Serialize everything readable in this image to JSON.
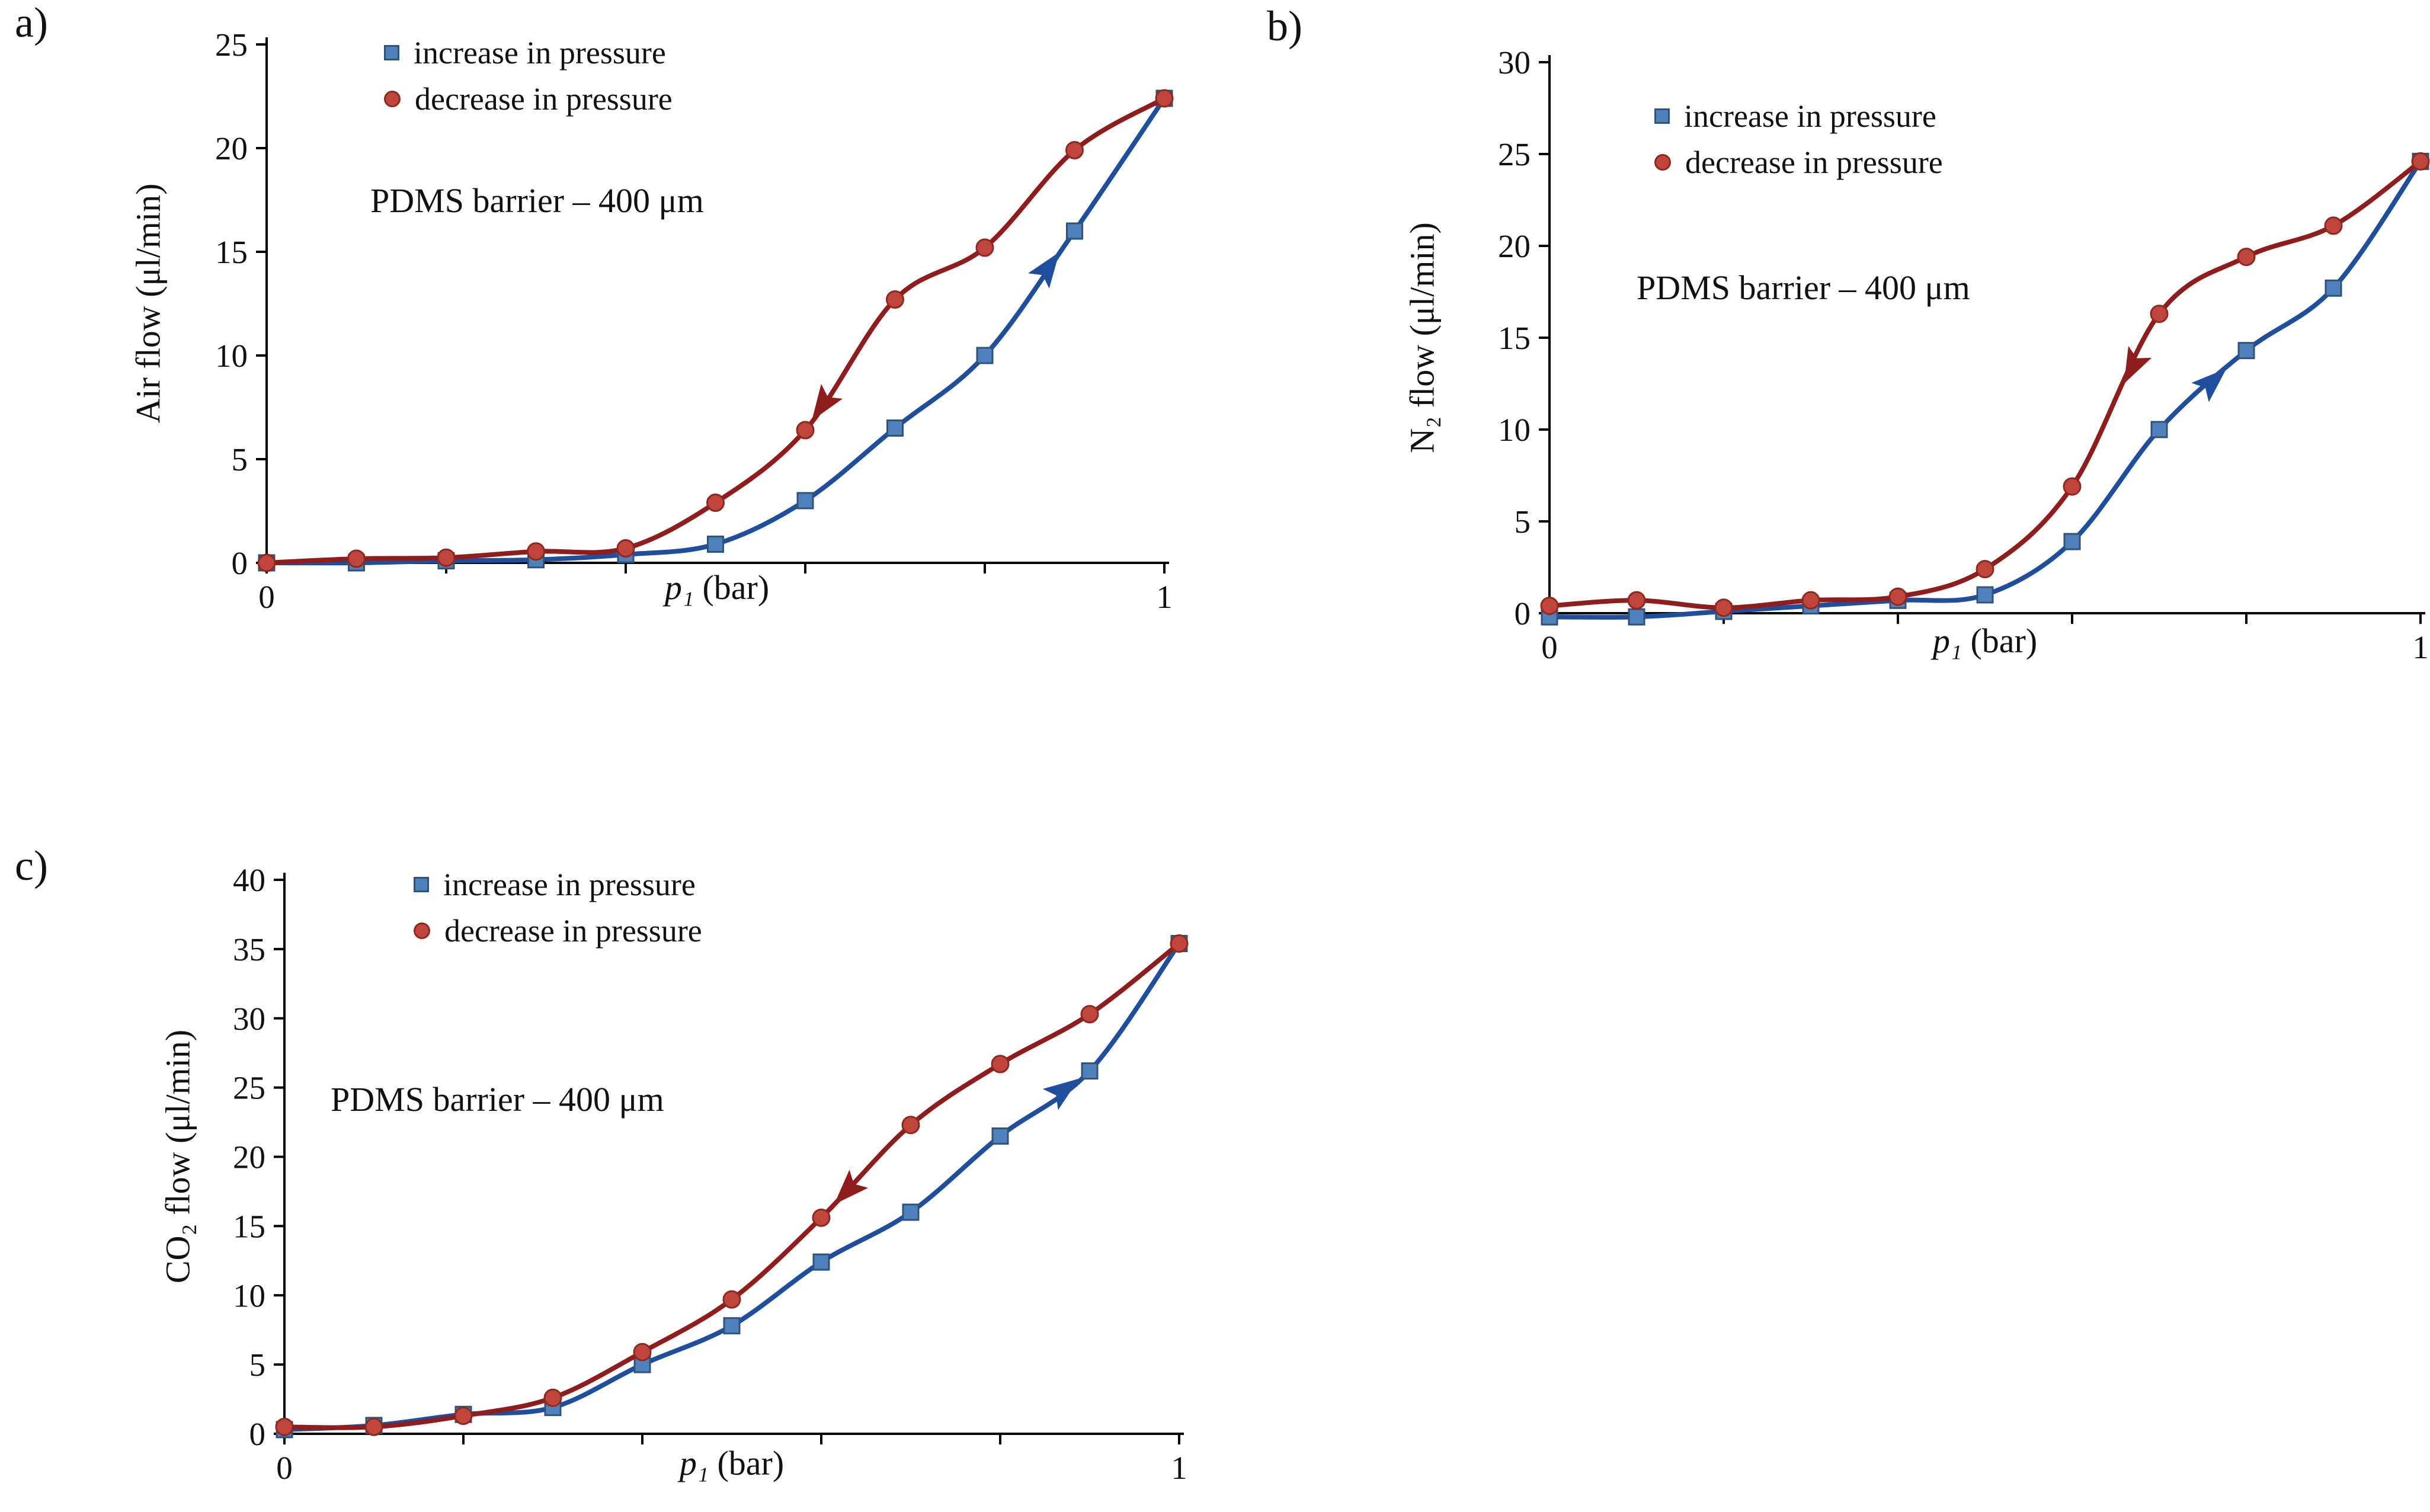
{
  "figure": {
    "background": "#ffffff",
    "text_color": "#111111",
    "axis_color": "#000000"
  },
  "chart_data": [
    {
      "id": "a",
      "type": "line",
      "panel_label": "a)",
      "ylabel": "Air flow (μl/min)",
      "xlabel_var": "p₁",
      "xlabel_rest": " (bar)",
      "annotation": "PDMS barrier – 400 μm",
      "xlim": [
        0,
        1
      ],
      "ylim": [
        0,
        25
      ],
      "yticks": [
        0,
        5,
        10,
        15,
        20,
        25
      ],
      "xticks": [
        0,
        0.2,
        0.4,
        0.6,
        0.8,
        1
      ],
      "xtick_labels": [
        "0",
        "",
        "",
        "",
        "",
        "1"
      ],
      "grid": false,
      "legend_position": "top-left",
      "series": [
        {
          "name": "increase in pressure",
          "marker": "square",
          "marker_color": "#4f81bd",
          "marker_edge": "#31537a",
          "line_color": "#1f4e9c",
          "x": [
            0,
            0.1,
            0.2,
            0.3,
            0.4,
            0.5,
            0.6,
            0.7,
            0.8,
            0.9,
            1
          ],
          "y": [
            0,
            0,
            0.1,
            0.15,
            0.4,
            0.9,
            3.0,
            6.5,
            10.0,
            16.0,
            22.4
          ],
          "arrow": {
            "x": 0.87,
            "direction": "increasing"
          }
        },
        {
          "name": "decrease in pressure",
          "marker": "circle",
          "marker_color": "#c0453c",
          "marker_edge": "#8c2a22",
          "line_color": "#8f1d1d",
          "x": [
            0,
            0.1,
            0.2,
            0.3,
            0.4,
            0.5,
            0.6,
            0.7,
            0.8,
            0.9,
            1
          ],
          "y": [
            0,
            0.2,
            0.25,
            0.55,
            0.7,
            2.9,
            6.4,
            12.7,
            15.2,
            19.9,
            22.4
          ],
          "arrow": {
            "x": 0.62,
            "direction": "decreasing"
          }
        }
      ]
    },
    {
      "id": "b",
      "type": "line",
      "panel_label": "b)",
      "ylabel": "N₂ flow (μl/min)",
      "xlabel_var": "p₁",
      "xlabel_rest": " (bar)",
      "annotation": "PDMS barrier – 400 μm",
      "xlim": [
        0,
        1
      ],
      "ylim": [
        0,
        30
      ],
      "yticks": [
        0,
        5,
        10,
        15,
        20,
        25,
        30
      ],
      "xticks": [
        0,
        0.2,
        0.4,
        0.6,
        0.8,
        1
      ],
      "xtick_labels": [
        "0",
        "",
        "",
        "",
        "",
        "1"
      ],
      "grid": false,
      "legend_position": "top-left",
      "series": [
        {
          "name": "increase in pressure",
          "marker": "square",
          "marker_color": "#4f81bd",
          "marker_edge": "#31537a",
          "line_color": "#1f4e9c",
          "x": [
            0,
            0.1,
            0.2,
            0.3,
            0.4,
            0.5,
            0.6,
            0.7,
            0.8,
            0.9,
            1
          ],
          "y": [
            -0.2,
            -0.2,
            0.1,
            0.4,
            0.7,
            1.0,
            3.9,
            10.0,
            14.3,
            17.7,
            24.6
          ],
          "arrow": {
            "x": 0.76,
            "direction": "increasing"
          }
        },
        {
          "name": "decrease in pressure",
          "marker": "circle",
          "marker_color": "#c0453c",
          "marker_edge": "#8c2a22",
          "line_color": "#8f1d1d",
          "x": [
            0,
            0.1,
            0.2,
            0.3,
            0.4,
            0.5,
            0.6,
            0.7,
            0.8,
            0.9,
            1
          ],
          "y": [
            0.4,
            0.7,
            0.3,
            0.7,
            0.9,
            2.4,
            6.9,
            16.3,
            19.4,
            21.1,
            24.6
          ],
          "arrow": {
            "x": 0.67,
            "direction": "decreasing"
          }
        }
      ]
    },
    {
      "id": "c",
      "type": "line",
      "panel_label": "c)",
      "ylabel": "CO₂ flow (μl/min)",
      "xlabel_var": "p₁",
      "xlabel_rest": " (bar)",
      "annotation": "PDMS barrier – 400 μm",
      "xlim": [
        0,
        1
      ],
      "ylim": [
        0,
        40
      ],
      "yticks": [
        0,
        5,
        10,
        15,
        20,
        25,
        30,
        35,
        40
      ],
      "xticks": [
        0,
        0.2,
        0.4,
        0.6,
        0.8,
        1
      ],
      "xtick_labels": [
        "0",
        "",
        "",
        "",
        "",
        "1"
      ],
      "grid": false,
      "legend_position": "top-left",
      "series": [
        {
          "name": "increase in pressure",
          "marker": "square",
          "marker_color": "#4f81bd",
          "marker_edge": "#31537a",
          "line_color": "#1f4e9c",
          "x": [
            0,
            0.1,
            0.2,
            0.3,
            0.4,
            0.5,
            0.6,
            0.7,
            0.8,
            0.9,
            1
          ],
          "y": [
            0.3,
            0.6,
            1.4,
            1.9,
            5.0,
            7.8,
            12.4,
            16.0,
            21.5,
            26.2,
            35.4
          ],
          "arrow": {
            "x": 0.87,
            "direction": "increasing"
          }
        },
        {
          "name": "decrease in pressure",
          "marker": "circle",
          "marker_color": "#c0453c",
          "marker_edge": "#8c2a22",
          "line_color": "#8f1d1d",
          "x": [
            0,
            0.1,
            0.2,
            0.3,
            0.4,
            0.5,
            0.6,
            0.7,
            0.8,
            0.9,
            1
          ],
          "y": [
            0.5,
            0.5,
            1.3,
            2.6,
            5.9,
            9.7,
            15.6,
            22.3,
            26.7,
            30.3,
            35.4
          ],
          "arrow": {
            "x": 0.63,
            "direction": "decreasing"
          }
        }
      ]
    }
  ]
}
